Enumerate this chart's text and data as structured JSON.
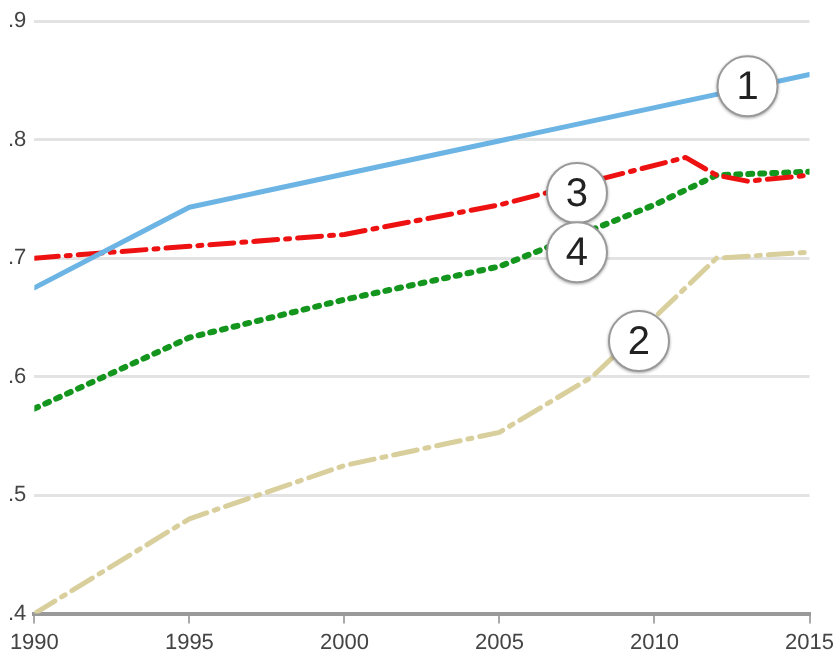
{
  "chart_data": {
    "type": "line",
    "xlim": [
      1990,
      2015
    ],
    "xticks": [
      1990,
      1995,
      2000,
      2005,
      2010,
      2015
    ],
    "ylim": [
      0.4,
      0.9
    ],
    "yticks": [
      {
        "value": 0.4,
        "label": ".4"
      },
      {
        "value": 0.5,
        "label": ".5"
      },
      {
        "value": 0.6,
        "label": ".6"
      },
      {
        "value": 0.7,
        "label": ".7"
      },
      {
        "value": 0.8,
        "label": ".8"
      },
      {
        "value": 0.9,
        "label": ".9"
      }
    ],
    "grid": "y",
    "legend": false,
    "marker": "none",
    "series": [
      {
        "color": "#6cb4e4",
        "line_style": "solid",
        "x": [
          1990,
          1995,
          2015
        ],
        "values": [
          0.675,
          0.743,
          0.855
        ]
      },
      {
        "color": "#d8cf9c",
        "line_style": "dashed",
        "x": [
          1990,
          1995,
          2000,
          2005,
          2008,
          2012,
          2015
        ],
        "values": [
          0.4,
          0.48,
          0.525,
          0.553,
          0.6,
          0.7,
          0.705
        ]
      },
      {
        "color": "#ee1111",
        "line_style": "dashed",
        "x": [
          1990,
          1995,
          2000,
          2005,
          2011,
          2012,
          2013,
          2015
        ],
        "values": [
          0.7,
          0.71,
          0.72,
          0.745,
          0.785,
          0.77,
          0.765,
          0.77
        ]
      },
      {
        "color": "#14961e",
        "line_style": "dotted",
        "x": [
          1990,
          1995,
          2000,
          2005,
          2010,
          2012,
          2015
        ],
        "values": [
          0.573,
          0.633,
          0.665,
          0.693,
          0.745,
          0.77,
          0.773
        ]
      }
    ],
    "annotations": [
      {
        "text": "1",
        "x": 2013,
        "y": 0.845
      },
      {
        "text": "2",
        "x": 2009.5,
        "y": 0.63
      },
      {
        "text": "3",
        "x": 2007.5,
        "y": 0.755
      },
      {
        "text": "4",
        "x": 2007.5,
        "y": 0.705
      }
    ]
  }
}
